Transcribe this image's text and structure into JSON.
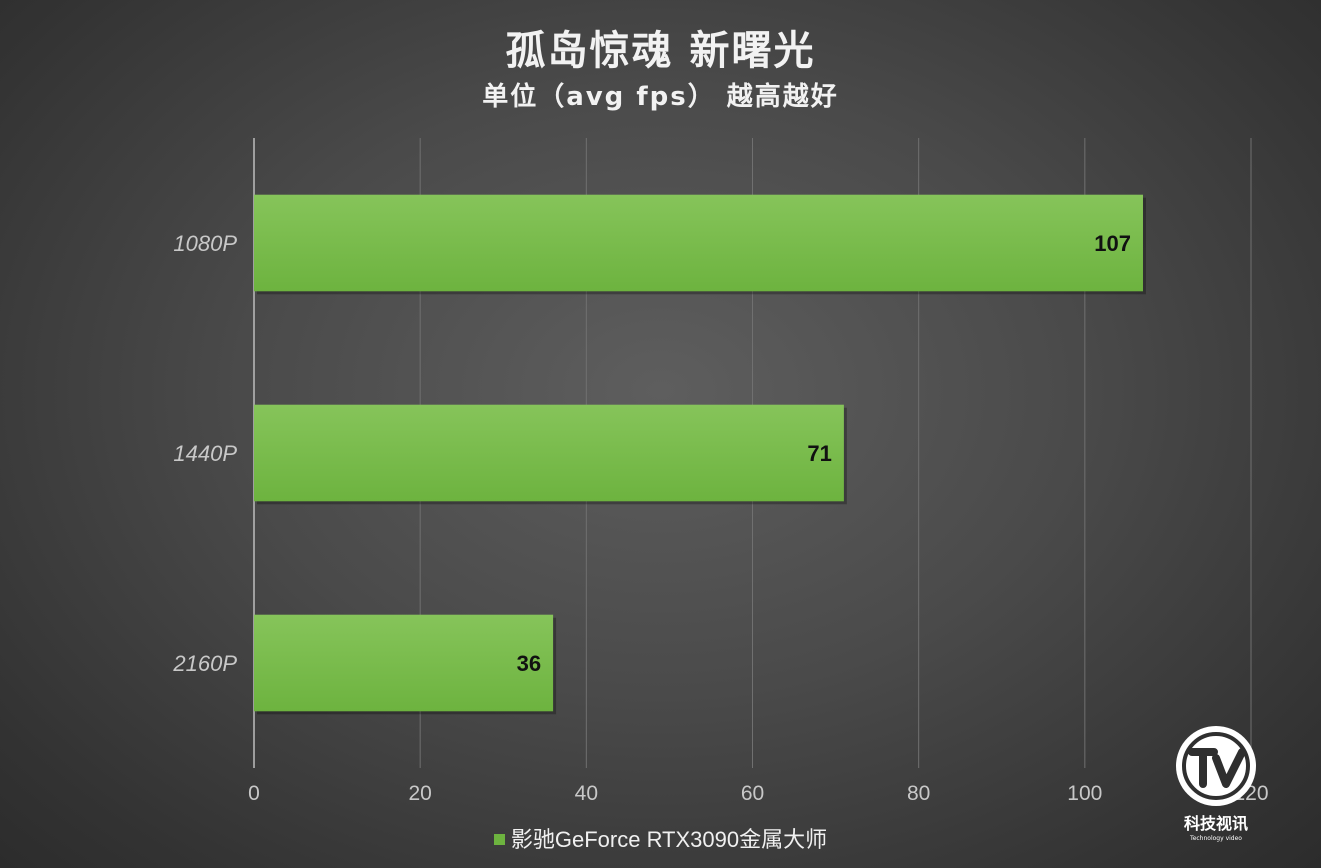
{
  "title": "孤岛惊魂 新曙光",
  "subtitle": "单位（avg fps） 越高越好",
  "colors": {
    "bar": "#6db33f",
    "bar_top": "#86c45a",
    "grid": "#707070",
    "axis": "#bdbdbd"
  },
  "legend": {
    "label": "影驰GeForce RTX3090金属大师"
  },
  "logo": {
    "text": "科技视讯",
    "tagline": "Technology video"
  },
  "chart_data": {
    "type": "bar",
    "orientation": "horizontal",
    "categories": [
      "1080P",
      "1440P",
      "2160P"
    ],
    "series": [
      {
        "name": "影驰GeForce RTX3090金属大师",
        "values": [
          107,
          71,
          36
        ]
      }
    ],
    "xlim": [
      0,
      120
    ],
    "xticks": [
      0,
      20,
      40,
      60,
      80,
      100,
      120
    ],
    "grid": true,
    "legend_position": "bottom",
    "title": "孤岛惊魂 新曙光",
    "subtitle": "单位（avg fps） 越高越好"
  }
}
